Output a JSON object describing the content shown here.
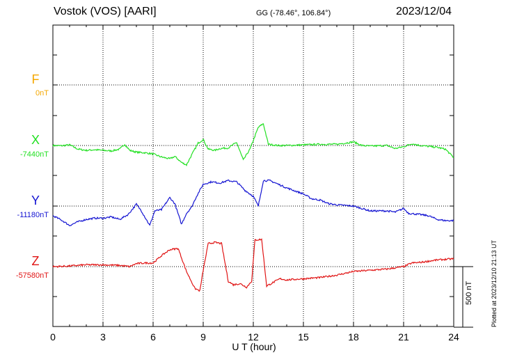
{
  "header": {
    "station": "Vostok (VOS)  [AARI]",
    "coords": "GG (-78.46°, 106.84°)",
    "date": "2023/12/04"
  },
  "channels": [
    {
      "name": "F",
      "baseline": "0nT",
      "color": "#f5a800"
    },
    {
      "name": "X",
      "baseline": "-7440nT",
      "color": "#22e022"
    },
    {
      "name": "Y",
      "baseline": "-11180nT",
      "color": "#1414d2"
    },
    {
      "name": "Z",
      "baseline": "-57580nT",
      "color": "#e01414"
    }
  ],
  "x_ticks": [
    "0",
    "3",
    "6",
    "9",
    "12",
    "15",
    "18",
    "21",
    "24"
  ],
  "x_label": "U T (hour)",
  "scale_bar": "500 nT",
  "plotted_at": "Plotted at 2023/12/10 21:13 UT",
  "chart_data": {
    "type": "line",
    "xlabel": "U T (hour)",
    "xlim": [
      0,
      24
    ],
    "scale_nT": 500,
    "series": [
      {
        "name": "X",
        "baseline_nT": -7440,
        "color": "#22e022",
        "points": [
          [
            0,
            0
          ],
          [
            0.5,
            -2
          ],
          [
            1,
            5
          ],
          [
            1.5,
            -30
          ],
          [
            2,
            -40
          ],
          [
            2.5,
            -35
          ],
          [
            3,
            -40
          ],
          [
            3.5,
            -45
          ],
          [
            4,
            -30
          ],
          [
            4.3,
            10
          ],
          [
            4.6,
            -40
          ],
          [
            5,
            -55
          ],
          [
            5.5,
            -60
          ],
          [
            6,
            -70
          ],
          [
            6.5,
            -95
          ],
          [
            7,
            -110
          ],
          [
            7.3,
            -90
          ],
          [
            7.7,
            -140
          ],
          [
            8,
            -160
          ],
          [
            8.3,
            -80
          ],
          [
            8.7,
            20
          ],
          [
            9,
            50
          ],
          [
            9.3,
            -30
          ],
          [
            9.7,
            -40
          ],
          [
            10,
            -25
          ],
          [
            10.5,
            -20
          ],
          [
            11,
            25
          ],
          [
            11.4,
            -120
          ],
          [
            11.8,
            -30
          ],
          [
            12.3,
            150
          ],
          [
            12.6,
            180
          ],
          [
            12.9,
            10
          ],
          [
            13.5,
            0
          ],
          [
            14,
            0
          ],
          [
            15,
            5
          ],
          [
            16,
            10
          ],
          [
            17,
            10
          ],
          [
            18,
            30
          ],
          [
            18.5,
            0
          ],
          [
            19,
            -5
          ],
          [
            20,
            0
          ],
          [
            20.5,
            -25
          ],
          [
            21,
            -10
          ],
          [
            21.5,
            15
          ],
          [
            22,
            0
          ],
          [
            23,
            -15
          ],
          [
            23.5,
            -30
          ],
          [
            24,
            -100
          ]
        ]
      },
      {
        "name": "Y",
        "baseline_nT": -11180,
        "color": "#1414d2",
        "points": [
          [
            0,
            -80
          ],
          [
            0.5,
            -115
          ],
          [
            1,
            -160
          ],
          [
            1.5,
            -130
          ],
          [
            2,
            -110
          ],
          [
            2.5,
            -100
          ],
          [
            3,
            -100
          ],
          [
            3.5,
            -90
          ],
          [
            4,
            -110
          ],
          [
            4.5,
            -70
          ],
          [
            5,
            15
          ],
          [
            5.3,
            -40
          ],
          [
            5.8,
            -160
          ],
          [
            6.1,
            -40
          ],
          [
            6.5,
            -30
          ],
          [
            7,
            70
          ],
          [
            7.3,
            20
          ],
          [
            7.7,
            -150
          ],
          [
            8,
            -60
          ],
          [
            8.3,
            -10
          ],
          [
            8.6,
            80
          ],
          [
            9,
            180
          ],
          [
            9.5,
            200
          ],
          [
            10,
            190
          ],
          [
            10.5,
            210
          ],
          [
            11,
            200
          ],
          [
            11.5,
            130
          ],
          [
            12,
            80
          ],
          [
            12.3,
            0
          ],
          [
            12.6,
            210
          ],
          [
            13,
            210
          ],
          [
            13.5,
            180
          ],
          [
            14,
            150
          ],
          [
            15,
            100
          ],
          [
            15.5,
            60
          ],
          [
            16,
            50
          ],
          [
            16.5,
            20
          ],
          [
            17,
            10
          ],
          [
            18,
            0
          ],
          [
            18.5,
            -20
          ],
          [
            19,
            -40
          ],
          [
            20,
            -40
          ],
          [
            20.5,
            -50
          ],
          [
            21,
            -20
          ],
          [
            21.3,
            -60
          ],
          [
            22,
            -70
          ],
          [
            22.5,
            -80
          ],
          [
            23,
            -110
          ],
          [
            23.5,
            -120
          ],
          [
            24,
            -120
          ]
        ]
      },
      {
        "name": "Z",
        "baseline_nT": -57580,
        "color": "#e01414",
        "points": [
          [
            0,
            0
          ],
          [
            1,
            5
          ],
          [
            2,
            15
          ],
          [
            3,
            15
          ],
          [
            4,
            10
          ],
          [
            4.6,
            0
          ],
          [
            5,
            25
          ],
          [
            5.5,
            30
          ],
          [
            6,
            30
          ],
          [
            6.5,
            90
          ],
          [
            7,
            140
          ],
          [
            7.5,
            150
          ],
          [
            8,
            -40
          ],
          [
            8.5,
            -180
          ],
          [
            8.8,
            -200
          ],
          [
            9,
            -30
          ],
          [
            9.3,
            190
          ],
          [
            9.7,
            200
          ],
          [
            10.1,
            190
          ],
          [
            10.5,
            -120
          ],
          [
            10.8,
            -150
          ],
          [
            11.2,
            -140
          ],
          [
            11.6,
            -170
          ],
          [
            11.9,
            -120
          ],
          [
            12.1,
            220
          ],
          [
            12.5,
            225
          ],
          [
            12.8,
            -160
          ],
          [
            13.2,
            -130
          ],
          [
            13.6,
            -100
          ],
          [
            14,
            -110
          ],
          [
            15,
            -100
          ],
          [
            16,
            -90
          ],
          [
            17,
            -70
          ],
          [
            18,
            -40
          ],
          [
            19,
            -30
          ],
          [
            20,
            -20
          ],
          [
            21,
            0
          ],
          [
            21.5,
            30
          ],
          [
            22,
            35
          ],
          [
            23,
            55
          ],
          [
            23.5,
            60
          ],
          [
            24,
            65
          ]
        ]
      }
    ]
  }
}
